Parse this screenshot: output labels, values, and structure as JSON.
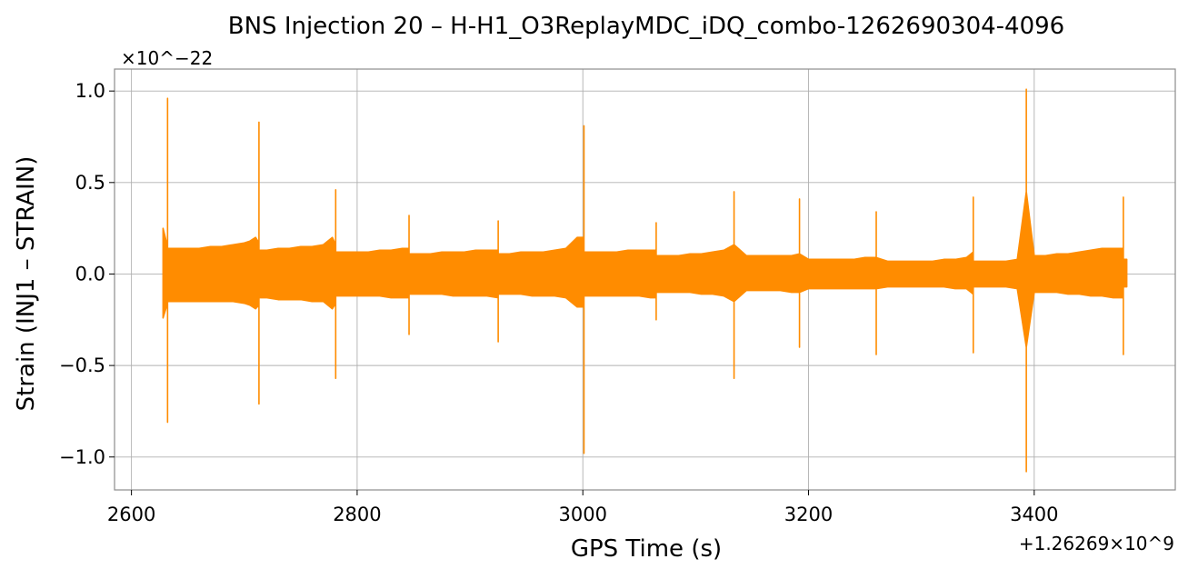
{
  "chart_data": {
    "type": "line",
    "title": "BNS Injection 20 – H-H1_O3ReplayMDC_iDQ_combo-1262690304-4096",
    "xlabel": "GPS Time (s)",
    "ylabel": "Strain (INJ1 – STRAIN)",
    "x_offset_label": "+1.26269×10^9",
    "y_scale_label": "×10^−22",
    "xlim": [
      2585,
      3525
    ],
    "ylim": [
      -1.18,
      1.12
    ],
    "x_ticks": [
      {
        "value": 2600,
        "label": "2600"
      },
      {
        "value": 2800,
        "label": "2800"
      },
      {
        "value": 3000,
        "label": "3000"
      },
      {
        "value": 3200,
        "label": "3200"
      },
      {
        "value": 3400,
        "label": "3400"
      }
    ],
    "y_ticks": [
      {
        "value": 1.0,
        "label": "1.0"
      },
      {
        "value": 0.5,
        "label": "0.5"
      },
      {
        "value": 0.0,
        "label": "0.0"
      },
      {
        "value": -0.5,
        "label": "−0.5"
      },
      {
        "value": -1.0,
        "label": "−1.0"
      }
    ],
    "grid": true,
    "line_color": "#ff8c00",
    "series": [
      {
        "x": [
          2628,
          2632,
          2632,
          2632,
          2632,
          2632,
          2640,
          2650,
          2660,
          2670,
          2680,
          2690,
          2700,
          2705,
          2710,
          2713,
          2713,
          2713,
          2713,
          2713,
          2720,
          2730,
          2740,
          2750,
          2760,
          2770,
          2778,
          2781,
          2781,
          2781,
          2781,
          2781,
          2790,
          2800,
          2810,
          2820,
          2830,
          2840,
          2846,
          2846,
          2846,
          2846,
          2846,
          2855,
          2865,
          2875,
          2885,
          2895,
          2905,
          2915,
          2925,
          2925,
          2925,
          2925,
          2925,
          2935,
          2945,
          2955,
          2965,
          2975,
          2985,
          2995,
          3001,
          3001,
          3001,
          3001,
          3001,
          3010,
          3020,
          3030,
          3040,
          3050,
          3060,
          3065,
          3065,
          3065,
          3065,
          3065,
          3075,
          3085,
          3095,
          3105,
          3115,
          3125,
          3134,
          3134,
          3134,
          3134,
          3134,
          3145,
          3155,
          3165,
          3175,
          3185,
          3192,
          3192,
          3192,
          3192,
          3192,
          3200,
          3210,
          3220,
          3230,
          3240,
          3250,
          3260,
          3260,
          3260,
          3260,
          3260,
          3270,
          3280,
          3290,
          3300,
          3310,
          3320,
          3330,
          3340,
          3346,
          3346,
          3346,
          3346,
          3346,
          3355,
          3365,
          3375,
          3385,
          3393,
          3393,
          3393,
          3393,
          3393,
          3400,
          3410,
          3420,
          3430,
          3440,
          3450,
          3460,
          3470,
          3479,
          3479,
          3479,
          3479,
          3479,
          3482
        ],
        "y_upper": [
          0.25,
          0.15,
          0.96,
          0.96,
          0.15,
          0.14,
          0.14,
          0.14,
          0.14,
          0.15,
          0.15,
          0.16,
          0.17,
          0.18,
          0.2,
          0.17,
          0.83,
          0.83,
          0.17,
          0.13,
          0.13,
          0.14,
          0.14,
          0.15,
          0.15,
          0.16,
          0.2,
          0.16,
          0.46,
          0.46,
          0.16,
          0.12,
          0.12,
          0.12,
          0.12,
          0.13,
          0.13,
          0.14,
          0.14,
          0.32,
          0.32,
          0.14,
          0.11,
          0.11,
          0.11,
          0.12,
          0.12,
          0.12,
          0.13,
          0.13,
          0.13,
          0.29,
          0.29,
          0.13,
          0.11,
          0.11,
          0.12,
          0.12,
          0.12,
          0.13,
          0.14,
          0.2,
          0.2,
          0.81,
          0.81,
          0.2,
          0.12,
          0.12,
          0.12,
          0.12,
          0.13,
          0.13,
          0.13,
          0.13,
          0.28,
          0.28,
          0.13,
          0.1,
          0.1,
          0.1,
          0.11,
          0.11,
          0.12,
          0.13,
          0.16,
          0.16,
          0.45,
          0.45,
          0.16,
          0.1,
          0.1,
          0.1,
          0.1,
          0.1,
          0.11,
          0.11,
          0.41,
          0.41,
          0.11,
          0.08,
          0.08,
          0.08,
          0.08,
          0.08,
          0.09,
          0.09,
          0.09,
          0.34,
          0.34,
          0.09,
          0.07,
          0.07,
          0.07,
          0.07,
          0.07,
          0.08,
          0.08,
          0.09,
          0.12,
          0.42,
          0.42,
          0.12,
          0.07,
          0.07,
          0.07,
          0.07,
          0.08,
          0.45,
          0.45,
          1.01,
          1.01,
          0.45,
          0.1,
          0.1,
          0.11,
          0.11,
          0.12,
          0.13,
          0.14,
          0.14,
          0.14,
          0.42,
          0.42,
          0.14,
          0.08,
          0.08
        ],
        "y_lower": [
          -0.24,
          -0.16,
          -0.81,
          -0.81,
          -0.16,
          -0.15,
          -0.15,
          -0.15,
          -0.15,
          -0.15,
          -0.15,
          -0.15,
          -0.16,
          -0.17,
          -0.19,
          -0.17,
          -0.71,
          -0.71,
          -0.17,
          -0.13,
          -0.13,
          -0.14,
          -0.14,
          -0.14,
          -0.15,
          -0.15,
          -0.19,
          -0.16,
          -0.57,
          -0.57,
          -0.16,
          -0.12,
          -0.12,
          -0.12,
          -0.12,
          -0.12,
          -0.13,
          -0.13,
          -0.13,
          -0.33,
          -0.33,
          -0.13,
          -0.11,
          -0.11,
          -0.11,
          -0.11,
          -0.12,
          -0.12,
          -0.12,
          -0.12,
          -0.13,
          -0.37,
          -0.37,
          -0.13,
          -0.11,
          -0.11,
          -0.11,
          -0.12,
          -0.12,
          -0.12,
          -0.13,
          -0.18,
          -0.18,
          -0.98,
          -0.98,
          -0.18,
          -0.12,
          -0.12,
          -0.12,
          -0.12,
          -0.12,
          -0.12,
          -0.13,
          -0.13,
          -0.25,
          -0.25,
          -0.13,
          -0.1,
          -0.1,
          -0.1,
          -0.1,
          -0.11,
          -0.11,
          -0.12,
          -0.15,
          -0.15,
          -0.57,
          -0.57,
          -0.15,
          -0.09,
          -0.09,
          -0.09,
          -0.09,
          -0.1,
          -0.1,
          -0.1,
          -0.4,
          -0.4,
          -0.1,
          -0.08,
          -0.08,
          -0.08,
          -0.08,
          -0.08,
          -0.08,
          -0.08,
          -0.08,
          -0.44,
          -0.44,
          -0.08,
          -0.07,
          -0.07,
          -0.07,
          -0.07,
          -0.07,
          -0.07,
          -0.08,
          -0.08,
          -0.11,
          -0.43,
          -0.43,
          -0.11,
          -0.07,
          -0.07,
          -0.07,
          -0.07,
          -0.08,
          -0.4,
          -0.4,
          -1.08,
          -1.08,
          -0.4,
          -0.1,
          -0.1,
          -0.1,
          -0.11,
          -0.11,
          -0.12,
          -0.12,
          -0.13,
          -0.13,
          -0.44,
          -0.44,
          -0.13,
          -0.07,
          -0.07
        ]
      }
    ]
  }
}
